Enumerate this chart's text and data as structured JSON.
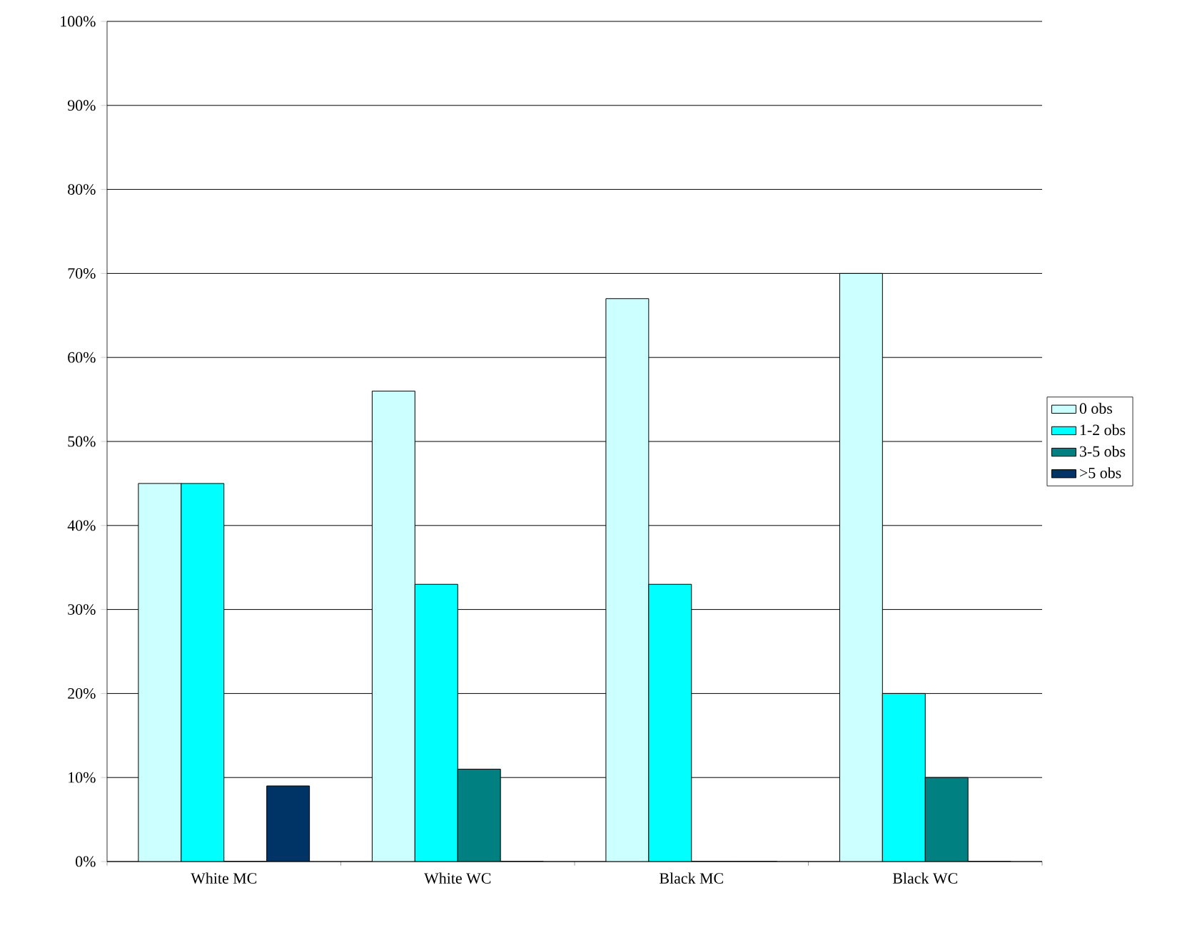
{
  "chart_data": {
    "type": "bar",
    "categories": [
      "White MC",
      "White WC",
      "Black MC",
      "Black WC"
    ],
    "series": [
      {
        "name": "0 obs",
        "color": "#ccffff",
        "values": [
          45,
          56,
          67,
          70
        ]
      },
      {
        "name": "1-2 obs",
        "color": "#00ffff",
        "values": [
          45,
          33,
          33,
          20
        ]
      },
      {
        "name": "3-5 obs",
        "color": "#008080",
        "values": [
          0,
          11,
          0,
          10
        ]
      },
      {
        "name": ">5 obs",
        "color": "#003366",
        "values": [
          9,
          0,
          0,
          0
        ]
      }
    ],
    "ylim": [
      0,
      100
    ],
    "yticks": [
      {
        "value": 0,
        "label": "0%"
      },
      {
        "value": 10,
        "label": "10%"
      },
      {
        "value": 20,
        "label": "20%"
      },
      {
        "value": 30,
        "label": "30%"
      },
      {
        "value": 40,
        "label": "40%"
      },
      {
        "value": 50,
        "label": "50%"
      },
      {
        "value": 60,
        "label": "60%"
      },
      {
        "value": 70,
        "label": "70%"
      },
      {
        "value": 80,
        "label": "80%"
      },
      {
        "value": 90,
        "label": "90%"
      },
      {
        "value": 100,
        "label": "100%"
      }
    ],
    "grid": "y",
    "legend": "right"
  }
}
